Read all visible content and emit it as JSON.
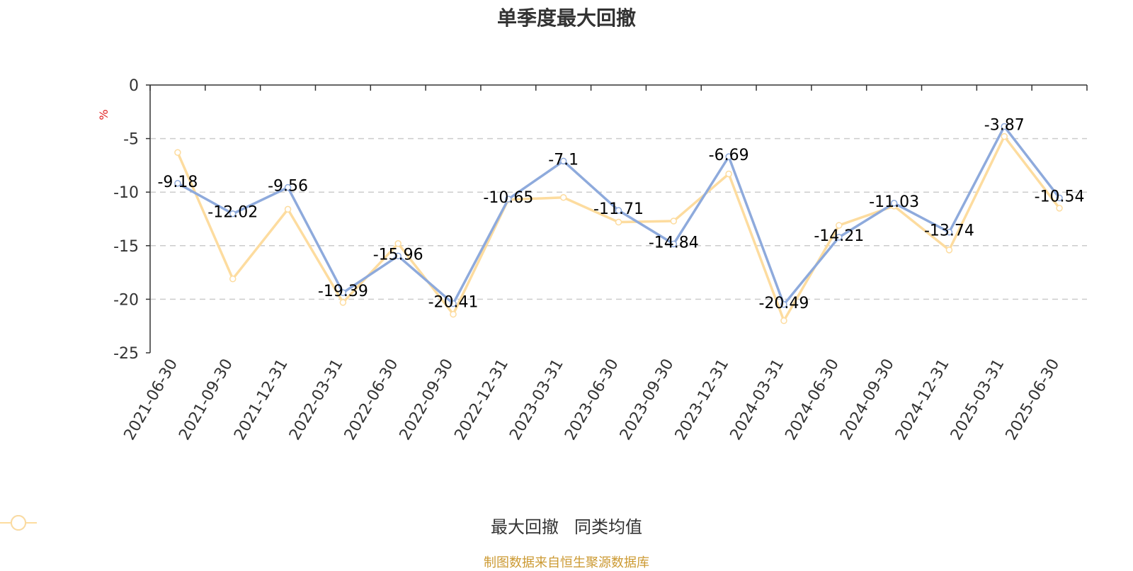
{
  "chart_data": {
    "type": "line",
    "title": "单季度最大回撤",
    "ylabel": "%",
    "ylim": [
      -25,
      0
    ],
    "yticks": [
      "0",
      "-5",
      "-10",
      "-15",
      "-20",
      "-25"
    ],
    "categories": [
      "2021-06-30",
      "2021-09-30",
      "2021-12-31",
      "2022-03-31",
      "2022-06-30",
      "2022-09-30",
      "2022-12-31",
      "2023-03-31",
      "2023-06-30",
      "2023-09-30",
      "2023-12-31",
      "2024-03-31",
      "2024-06-30",
      "2024-09-30",
      "2024-12-31",
      "2025-03-31",
      "2025-06-30"
    ],
    "series": [
      {
        "name": "最大回撤",
        "color": "#8eaadc",
        "values": [
          -9.18,
          -12.02,
          -9.56,
          -19.39,
          -15.96,
          -20.41,
          -10.65,
          -7.1,
          -11.71,
          -14.84,
          -6.69,
          -20.49,
          -14.21,
          -11.03,
          -13.74,
          -3.87,
          -10.54
        ],
        "labels": [
          "-9.18",
          "-12.02",
          "-9.56",
          "-19.39",
          "-15.96",
          "-20.41",
          "-10.65",
          "-7.1",
          "-11.71",
          "-14.84",
          "-6.69",
          "-20.49",
          "-14.21",
          "-11.03",
          "-13.74",
          "-3.87",
          "-10.54"
        ]
      },
      {
        "name": "同类均值",
        "color": "#fddc9f",
        "values": [
          -6.3,
          -18.1,
          -11.6,
          -20.3,
          -14.8,
          -21.4,
          -10.7,
          -10.5,
          -12.8,
          -12.7,
          -8.3,
          -22.0,
          -13.1,
          -11.3,
          -15.4,
          -4.8,
          -11.5
        ]
      }
    ],
    "grid": true,
    "legend": "bottom"
  },
  "source": "制图数据来自恒生聚源数据库"
}
